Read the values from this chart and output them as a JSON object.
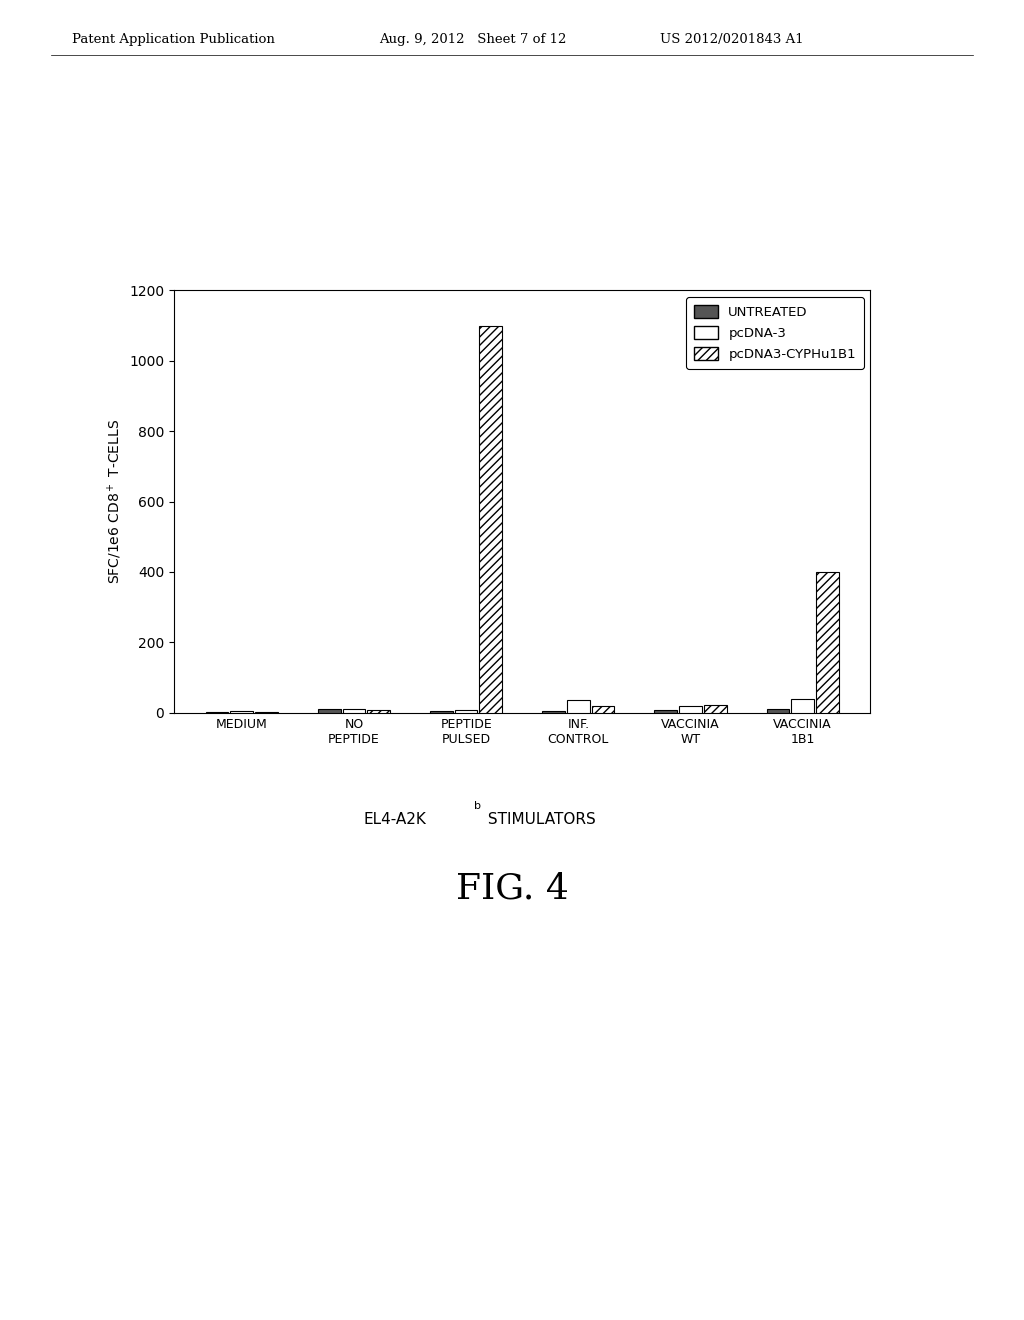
{
  "categories": [
    "MEDIUM",
    "NO\nPEPTIDE",
    "PEPTIDE\nPULSED",
    "INF.\nCONTROL",
    "VACCINIA\nWT",
    "VACCINIA\n1B1"
  ],
  "series": {
    "UNTREATED": [
      2,
      12,
      5,
      5,
      8,
      10
    ],
    "pcDNA-3": [
      4,
      10,
      8,
      35,
      18,
      40
    ],
    "pcDNA3-CYPHu1B1": [
      3,
      8,
      1100,
      18,
      22,
      400
    ]
  },
  "ylabel": "SFC/1e6 CD8$^+$ T-CELLS",
  "ylim": [
    0,
    1200
  ],
  "yticks": [
    0,
    200,
    400,
    600,
    800,
    1000,
    1200
  ],
  "fig_title_left": "Patent Application Publication",
  "fig_title_mid": "Aug. 9, 2012   Sheet 7 of 12",
  "fig_title_right": "US 2012/0201843 A1",
  "fig_label": "FIG. 4",
  "background_color": "#ffffff",
  "bar_width": 0.22
}
